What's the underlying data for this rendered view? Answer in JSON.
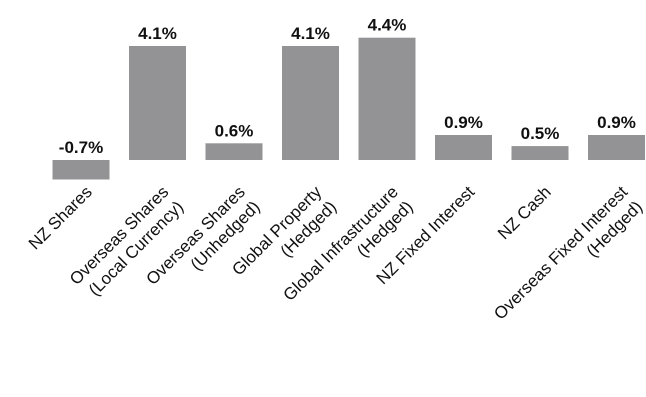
{
  "chart_data": {
    "type": "bar",
    "categories": [
      [
        "NZ Shares"
      ],
      [
        "Overseas Shares",
        "(Local Currency)"
      ],
      [
        "Overseas Shares",
        "(Unhedged)"
      ],
      [
        "Global Property",
        "(Hedged)"
      ],
      [
        "Global Infrastructure",
        "(Hedged)"
      ],
      [
        "NZ Fixed Interest"
      ],
      [
        "NZ Cash"
      ],
      [
        "Overseas Fixed Interest",
        "(Hedged)"
      ]
    ],
    "values": [
      -0.7,
      4.1,
      0.6,
      4.1,
      4.4,
      0.9,
      0.5,
      0.9
    ],
    "data_labels": [
      "-0.7%",
      "4.1%",
      "0.6%",
      "4.1%",
      "4.4%",
      "0.9%",
      "0.5%",
      "0.9%"
    ],
    "title": "",
    "xlabel": "",
    "ylabel": "",
    "bar_color": "#939395",
    "grid": false,
    "legend": "none"
  }
}
